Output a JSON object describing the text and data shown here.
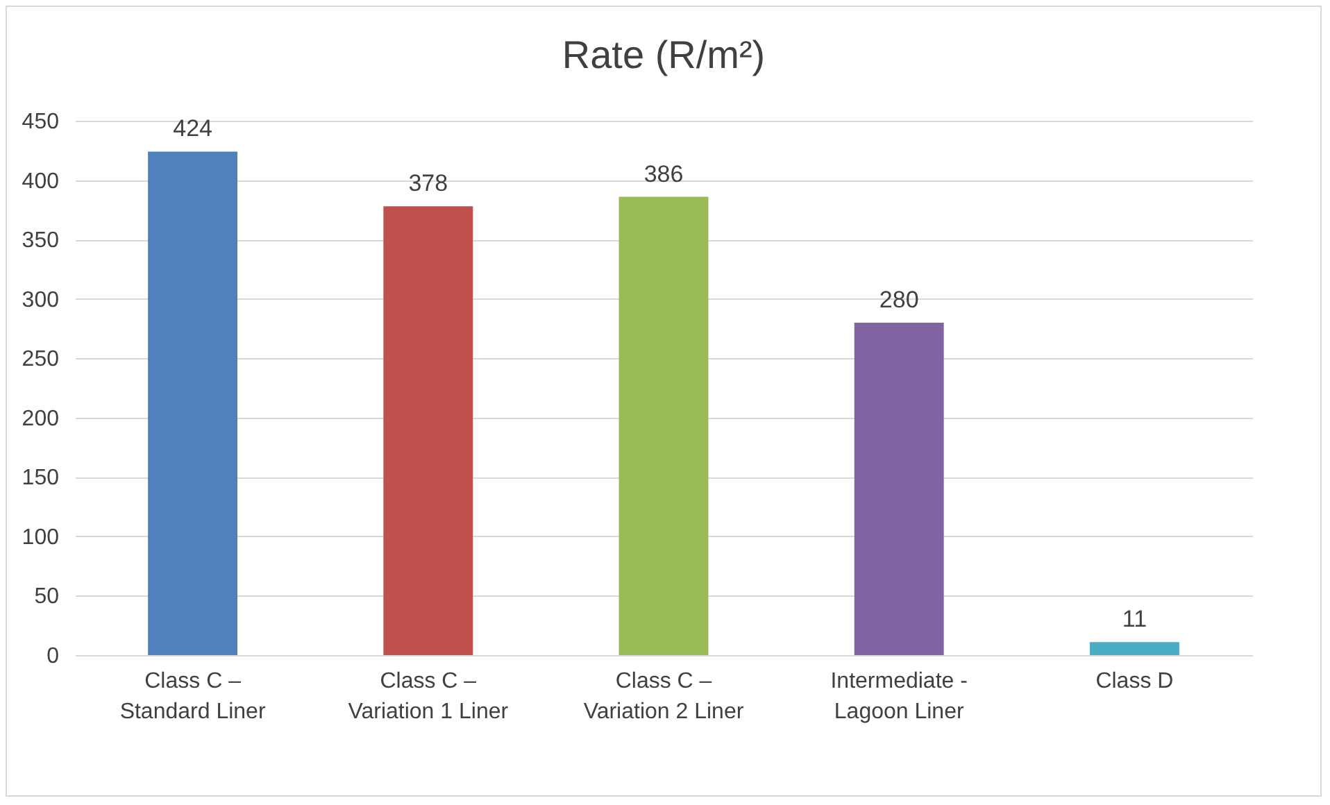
{
  "chart_data": {
    "type": "bar",
    "title": "Rate (R/m²)",
    "categories": [
      "Class C – Standard Liner",
      "Class C – Variation 1 Liner",
      "Class C – Variation 2 Liner",
      "Intermediate - Lagoon Liner",
      "Class D"
    ],
    "values": [
      424,
      378,
      386,
      280,
      11
    ],
    "colors": [
      "#4f81bd",
      "#c0504d",
      "#9bbb59",
      "#8064a2",
      "#4bacc6"
    ],
    "ylim": [
      0,
      450
    ],
    "yticks": [
      0,
      50,
      100,
      150,
      200,
      250,
      300,
      350,
      400,
      450
    ],
    "grid": "y",
    "data_labels": true
  }
}
